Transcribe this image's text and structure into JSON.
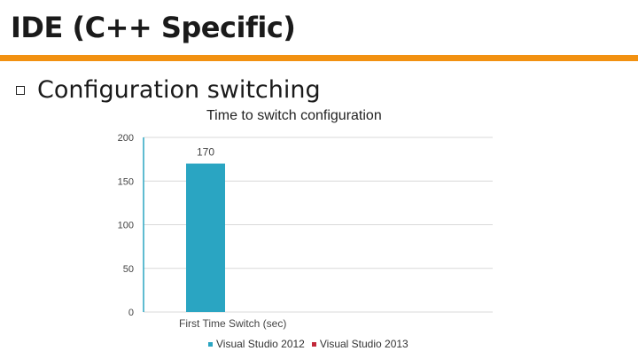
{
  "slide": {
    "title": "IDE (C++ Specific)",
    "bullet": "Configuration switching"
  },
  "colors": {
    "accent_rule": "#f29111",
    "series_2012": "#2aa5c2",
    "series_2013": "#c2283a"
  },
  "chart_data": {
    "type": "bar",
    "title": "Time to switch configuration",
    "categories": [
      "First Time Switch (sec)"
    ],
    "series": [
      {
        "name": "Visual Studio 2012",
        "values": [
          170
        ],
        "color": "#2aa5c2"
      },
      {
        "name": "Visual Studio 2013",
        "values": [
          0
        ],
        "color": "#c2283a"
      }
    ],
    "data_labels": [
      "170"
    ],
    "yticks": [
      "0",
      "50",
      "100",
      "150",
      "200"
    ],
    "ylim": [
      0,
      200
    ],
    "grid": true,
    "legend_position": "bottom"
  }
}
